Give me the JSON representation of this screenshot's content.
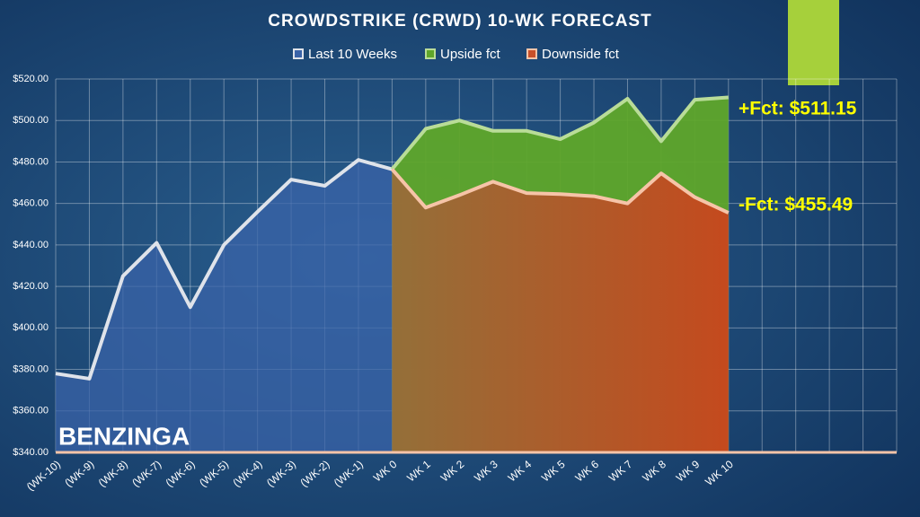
{
  "chart_data": {
    "type": "area",
    "title": "CROWDSTRIKE (CRWD) 10-WK FORECAST",
    "categories": [
      "(WK-10)",
      "(WK-9)",
      "(WK-8)",
      "(WK-7)",
      "(WK-6)",
      "(WK-5)",
      "(WK-4)",
      "(WK-3)",
      "(WK-2)",
      "(WK-1)",
      "WK 0",
      "WK 1",
      "WK 2",
      "WK 3",
      "WK 4",
      "WK 5",
      "WK 6",
      "WK 7",
      "WK 8",
      "WK 9",
      "WK 10",
      null,
      null,
      null,
      null,
      null
    ],
    "series": [
      {
        "name": "Last 10 Weeks",
        "color": "#3a63a8",
        "line_color": "#dfe3ea",
        "values": [
          378,
          375.5,
          425,
          441,
          410,
          440,
          456,
          471.5,
          468.5,
          481,
          476.5,
          null,
          null,
          null,
          null,
          null,
          null,
          null,
          null,
          null,
          null,
          null,
          null,
          null,
          null,
          null
        ]
      },
      {
        "name": "Upside fct",
        "color": "#5fa62a",
        "line_color": "#b9dc98",
        "values": [
          null,
          null,
          null,
          null,
          null,
          null,
          null,
          null,
          null,
          null,
          476.5,
          496,
          500,
          495,
          495,
          491,
          499,
          510.5,
          490,
          510,
          511.15,
          null,
          null,
          null,
          null,
          null
        ]
      },
      {
        "name": "Downside fct",
        "color": "#c8502a",
        "line_color": "#f6c4a8",
        "values": [
          null,
          null,
          null,
          null,
          null,
          null,
          null,
          null,
          null,
          null,
          476.5,
          458,
          464,
          470.5,
          465,
          464.5,
          463.5,
          460,
          474.5,
          463,
          455.49,
          null,
          null,
          null,
          null,
          null
        ]
      }
    ],
    "ylim": [
      340,
      520
    ],
    "yticks": [
      {
        "value": 340,
        "label": "$340.00"
      },
      {
        "value": 360,
        "label": "$360.00"
      },
      {
        "value": 380,
        "label": "$380.00"
      },
      {
        "value": 400,
        "label": "$400.00"
      },
      {
        "value": 420,
        "label": "$420.00"
      },
      {
        "value": 440,
        "label": "$440.00"
      },
      {
        "value": 460,
        "label": "$460.00"
      },
      {
        "value": 480,
        "label": "$480.00"
      },
      {
        "value": 500,
        "label": "$500.00"
      },
      {
        "value": 520,
        "label": "$520.00"
      }
    ],
    "grid": true,
    "legend": "top",
    "annotations": [
      "+Fct: $511.15",
      "-Fct: $455.49",
      "BENZINGA"
    ]
  }
}
